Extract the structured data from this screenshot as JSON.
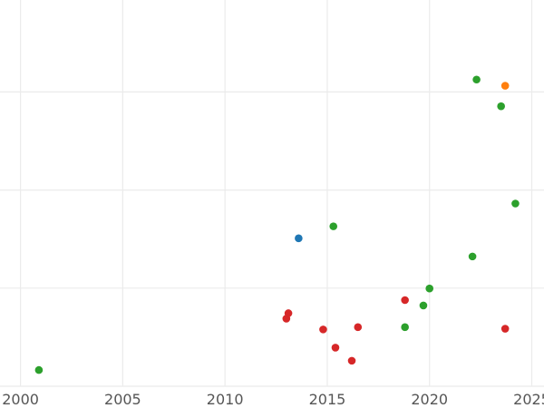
{
  "chart_data": {
    "type": "scatter",
    "title": "",
    "xlabel": "",
    "ylabel": "",
    "grid": true,
    "legend": "none",
    "xlim": [
      2000.0,
      2026.6
    ],
    "ylim": [
      0.0,
      1.0
    ],
    "x_ticks": [
      {
        "value": 2000,
        "label": "2000"
      },
      {
        "value": 2005,
        "label": "2005"
      },
      {
        "value": 2010,
        "label": "2010"
      },
      {
        "value": 2015,
        "label": "2015"
      },
      {
        "value": 2020,
        "label": "2020"
      },
      {
        "value": 2025,
        "label": "2025"
      }
    ],
    "y_gridlines": [
      0.0,
      0.254,
      0.508,
      0.762
    ],
    "series": [
      {
        "color": "#2ca02c",
        "points": [
          {
            "x": 2000.9,
            "y": 0.042
          },
          {
            "x": 2015.3,
            "y": 0.414
          },
          {
            "x": 2018.8,
            "y": 0.153
          },
          {
            "x": 2019.7,
            "y": 0.209
          },
          {
            "x": 2020.0,
            "y": 0.253
          },
          {
            "x": 2022.1,
            "y": 0.336
          },
          {
            "x": 2022.3,
            "y": 0.794
          },
          {
            "x": 2023.5,
            "y": 0.725
          },
          {
            "x": 2024.2,
            "y": 0.473
          }
        ]
      },
      {
        "color": "#d62728",
        "points": [
          {
            "x": 2013.0,
            "y": 0.175
          },
          {
            "x": 2013.1,
            "y": 0.189
          },
          {
            "x": 2014.8,
            "y": 0.147
          },
          {
            "x": 2015.4,
            "y": 0.1
          },
          {
            "x": 2016.2,
            "y": 0.066
          },
          {
            "x": 2016.5,
            "y": 0.153
          },
          {
            "x": 2018.8,
            "y": 0.223
          },
          {
            "x": 2023.7,
            "y": 0.149
          }
        ]
      },
      {
        "color": "#1f77b4",
        "points": [
          {
            "x": 2013.6,
            "y": 0.383
          }
        ]
      },
      {
        "color": "#ff7f0e",
        "points": [
          {
            "x": 2023.7,
            "y": 0.778
          }
        ]
      }
    ]
  }
}
